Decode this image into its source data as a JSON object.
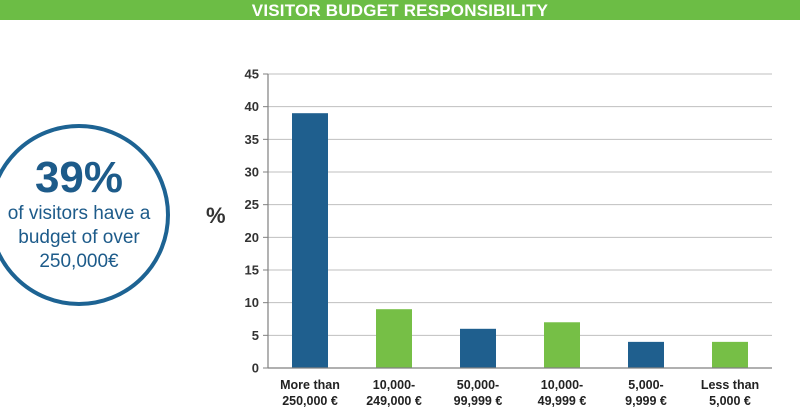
{
  "banner": {
    "title": "VISITOR BUDGET RESPONSIBILITY"
  },
  "callout": {
    "value": "39%",
    "lines": [
      "of visitors have a",
      "budget of over",
      "250,000€"
    ]
  },
  "colors": {
    "blue": "#1f5f8e",
    "green": "#76bf46",
    "grid": "#bfbfbf",
    "axis": "#808080"
  },
  "chart_data": {
    "type": "bar",
    "ylabel": "%",
    "ylim": [
      0,
      45
    ],
    "yticks": [
      0,
      5,
      10,
      15,
      20,
      25,
      30,
      35,
      40,
      45
    ],
    "grid": true,
    "categories": [
      [
        "More than",
        "250,000 €"
      ],
      [
        "10,000-",
        "249,000 €"
      ],
      [
        "50,000-",
        "99,999 €"
      ],
      [
        "10,000-",
        "49,999 €"
      ],
      [
        "5,000-",
        "9,999 €"
      ],
      [
        "Less than",
        "5,000 €"
      ]
    ],
    "values": [
      39,
      9,
      6,
      7,
      4,
      4
    ],
    "bar_colors": [
      "blue",
      "green",
      "blue",
      "green",
      "blue",
      "green"
    ]
  }
}
